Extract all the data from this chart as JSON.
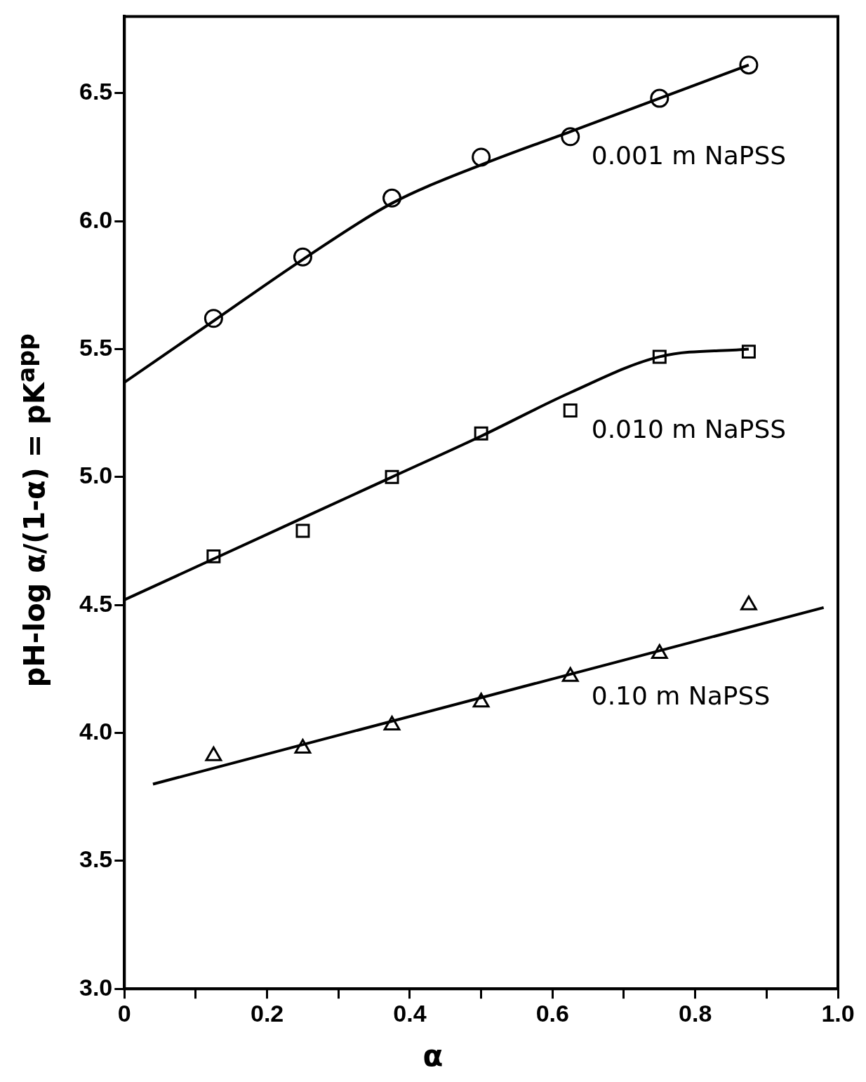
{
  "chart_data": {
    "type": "scatter",
    "xlabel": "α",
    "ylabel": "pH-log α/(1-α) = pK$^{app}$",
    "xlim": [
      0,
      1.0
    ],
    "ylim": [
      3,
      6.8
    ],
    "xticks": [
      0,
      {
        "value": 0.1,
        "label": null
      },
      {
        "value": 0.2,
        "label": "0.2"
      },
      {
        "value": 0.3,
        "label": null
      },
      {
        "value": 0.4,
        "label": "0.4"
      },
      {
        "value": 0.5,
        "label": null
      },
      {
        "value": 0.6,
        "label": "0.6"
      },
      {
        "value": 0.7,
        "label": null
      },
      {
        "value": 0.8,
        "label": "0.8"
      },
      {
        "value": 0.9,
        "label": null
      },
      {
        "value": 1.0,
        "label": "1.0"
      }
    ],
    "yticks": [
      {
        "value": 3,
        "label": "3.0"
      },
      3.5,
      {
        "value": 4,
        "label": "4.0"
      },
      4.5,
      {
        "value": 5,
        "label": "5.0"
      },
      5.5,
      {
        "value": 6,
        "label": "6.0"
      },
      6.5
    ],
    "grid": false,
    "legend": false,
    "series": [
      {
        "type": "scatter",
        "name": "0.001 m NaPSS",
        "marker": "circle",
        "color": "#000000",
        "x": [
          0.125,
          0.25,
          0.375,
          0.5,
          0.625,
          0.75,
          0.875
        ],
        "values": [
          5.62,
          5.86,
          6.09,
          6.25,
          6.33,
          6.48,
          6.61
        ]
      },
      {
        "type": "line",
        "marker": "none",
        "color": "#000000",
        "x": [
          0,
          0.125,
          0.25,
          0.375,
          0.5,
          0.625,
          0.75,
          0.875
        ],
        "values": [
          5.37,
          5.61,
          5.85,
          6.07,
          6.22,
          6.35,
          6.48,
          6.61
        ]
      },
      {
        "type": "scatter",
        "name": "0.010 m NaPSS",
        "marker": "square",
        "color": "#000000",
        "x": [
          0.125,
          0.25,
          0.375,
          0.5,
          0.625,
          0.75,
          0.875
        ],
        "values": [
          4.69,
          4.79,
          5.0,
          5.17,
          5.26,
          5.47,
          5.49
        ]
      },
      {
        "type": "line",
        "marker": "none",
        "color": "#000000",
        "x": [
          0,
          0.125,
          0.25,
          0.375,
          0.5,
          0.625,
          0.75,
          0.875
        ],
        "values": [
          4.52,
          4.68,
          4.84,
          5.0,
          5.16,
          5.33,
          5.47,
          5.5
        ]
      },
      {
        "type": "scatter",
        "name": "0.10 m NaPSS",
        "marker": "triangle",
        "color": "#000000",
        "x": [
          0.125,
          0.25,
          0.375,
          0.5,
          0.625,
          0.75,
          0.875
        ],
        "values": [
          3.91,
          3.94,
          4.03,
          4.12,
          4.22,
          4.31,
          4.5
        ]
      },
      {
        "type": "line",
        "marker": "none",
        "color": "#000000",
        "x": [
          0.04,
          0.98
        ],
        "values": [
          3.8,
          4.49
        ]
      }
    ]
  }
}
